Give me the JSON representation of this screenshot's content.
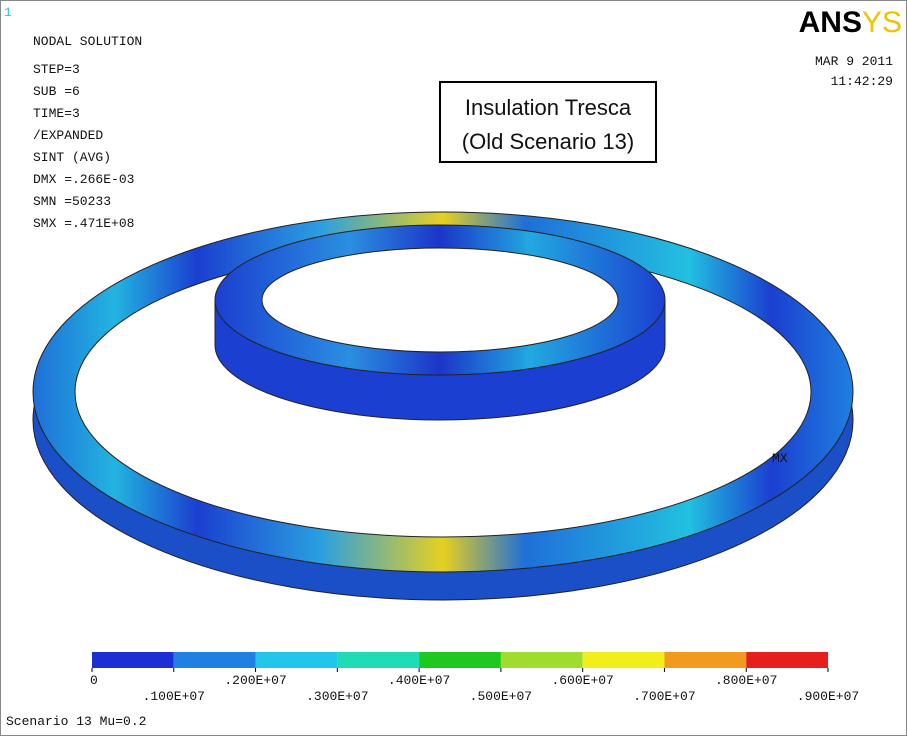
{
  "window_number": "1",
  "header": {
    "lines": [
      "NODAL SOLUTION",
      "STEP=3",
      "SUB =6",
      "TIME=3",
      "/EXPANDED",
      "SINT      (AVG)",
      "DMX =.266E-03",
      "SMN =50233",
      "SMX =.471E+08"
    ]
  },
  "logo": {
    "bold": "ANS",
    "light": "YS"
  },
  "date": "MAR  9 2011",
  "time": "11:42:29",
  "annotation": [
    "Insulation Tresca",
    "(Old Scenario 13)"
  ],
  "model_labels": [
    "MX"
  ],
  "legend": {
    "colors": [
      "#1b2fd4",
      "#1f7fe2",
      "#22c6ea",
      "#20dcb4",
      "#1ec81e",
      "#9fdc2e",
      "#f2ee1c",
      "#f29a1e",
      "#e61e1e"
    ],
    "labels": [
      "0",
      ".100E+07",
      ".200E+07",
      ".300E+07",
      ".400E+07",
      ".500E+07",
      ".600E+07",
      ".700E+07",
      ".800E+07",
      ".900E+07"
    ]
  },
  "footer": "Scenario 13 Mu=0.2"
}
